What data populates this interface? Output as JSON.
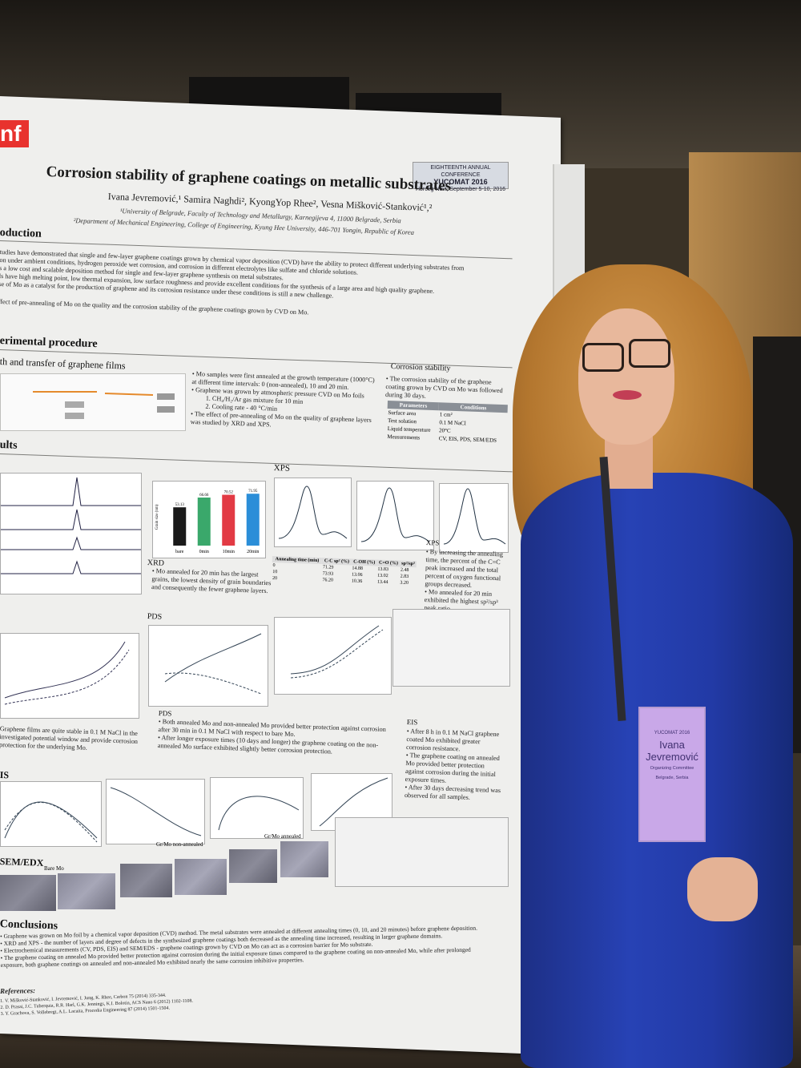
{
  "poster": {
    "title": "Corrosion stability of graphene coatings on metallic substrates",
    "authors": "Ivana Jevremović,¹ Samira Naghdi², KyongYop Rhee², Vesna Mišković-Stanković¹,²",
    "affiliation_1": "¹University of Belgrade, Faculty of Technology and Metallurgy, Karnegijeva 4, 11000 Belgrade, Serbia",
    "affiliation_2": "²Department of Mechanical Engineering, College of Engineering, Kyung Hee University, 446-701 Yongin, Republic of Korea",
    "conference": {
      "line1": "EIGHTEENTH ANNUAL CONFERENCE",
      "line2": "YUCOMAT 2016",
      "line3": "Herceg Novi, September 5-10, 2016"
    },
    "logo_text": "nf",
    "sections": {
      "introduction": "oduction",
      "experimental": "erimental procedure",
      "growth": "th and transfer of graphene films",
      "corrosion_stability": "Corrosion stability",
      "results": "ults",
      "xps": "XPS",
      "xrd": "XRD",
      "pds": "PDS",
      "eis": "IS",
      "sem": "SEM/EDX",
      "conclusions": "Conclusions",
      "references": "References:"
    },
    "intro_text": [
      "tudies have demonstrated that single and few-layer graphene coatings grown by chemical vapor deposition (CVD) have the ability to protect different underlying substrates from",
      "on under ambient conditions, hydrogen peroxide wet corrosion, and corrosion in different electrolytes like sulfate and chloride solutions.",
      "s a low cost and scalable deposition method for single and few-layer graphene synthesis on metal substrates.",
      "ls have high melting point, low thermal expansion, low surface roughness and provide excellent conditions for the synthesis of a large area and high quality graphene.",
      "se of Mo as a catalyst for the production of graphene and its corrosion resistance under these conditions is still a new challenge.",
      "ffect of pre-annealing of Mo on the quality and the corrosion stability of the graphene coatings grown by CVD on Mo."
    ],
    "experimental_text": [
      "• Mo samples were first annealed at the growth temperature (1000°C)",
      "at different time intervals: 0 (non-annealed), 10 and 20 min.",
      "• Graphene was grown by atmospheric pressure CVD on Mo foils",
      "1. CH₄/H₂/Ar gas mixture for 10 min",
      "2. Cooling rate - 40 °C/min",
      "• The effect of pre-annealing of Mo on the quality of graphene layers",
      "was studied by XRD and XPS."
    ],
    "corrosion_text": "• The corrosion stability of the graphene coating grown by CVD on Mo was followed during 30 days.",
    "corrosion_table": {
      "headers": [
        "Parameters",
        "Conditions"
      ],
      "rows": [
        [
          "Surface area",
          "1 cm²"
        ],
        [
          "Test solution",
          "0.1 M NaCl"
        ],
        [
          "Liquid temperature",
          "20°C"
        ],
        [
          "Measurements",
          "CV, EIS, PDS, SEM/EDS"
        ]
      ]
    },
    "grain_chart": {
      "ylabel": "Grain size (nm)",
      "categories": [
        "bare",
        "0min",
        "10min",
        "20min"
      ],
      "values": [
        53.13,
        66.66,
        70.52,
        71.95
      ],
      "colors": [
        "#1a1a1a",
        "#3aa86b",
        "#e23a44",
        "#2b8ed8"
      ]
    },
    "xrd_text": "• Mo annealed for 20 min has the largest grains, the lowest density of grain boundaries and consequently the fewer graphene layers.",
    "xps_text": [
      "• By increasing the annealing time, the percent of the C=C peak increased and the total percent of oxygen functional groups decreased.",
      "• Mo annealed for 20 min exhibited the highest sp²/sp³ peak ratio."
    ],
    "xps_table": {
      "headers": [
        "Annealing time (min)",
        "C-C sp² (%)",
        "C-OH (%)",
        "C=O (%)",
        "sp²/sp³"
      ],
      "rows": [
        [
          "0",
          "71.29",
          "14.88",
          "13.83",
          "2.48"
        ],
        [
          "10",
          "73.93",
          "13.06",
          "13.02",
          "2.83"
        ],
        [
          "20",
          "76.20",
          "10.36",
          "13.44",
          "3.20"
        ]
      ]
    },
    "cv_text": "Graphene films are quite stable in 0.1 M NaCl in the investigated potential window and provide corrosion protection for the underlying Mo.",
    "pds_text": [
      "• Both annealed Mo and non-annealed Mo provided better protection against corrosion after 30 min in 0.1 M NaCl with respect to bare Mo.",
      "• After longer exposure times (10 days and longer) the graphene coating on the non-annealed Mo surface exhibited slightly better corrosion protection."
    ],
    "eis_text": [
      "• After 8 h in 0.1 M NaCl graphene coated Mo exhibited greater corrosion resistance.",
      "• The graphene coating on annealed Mo provided better protection against corrosion during the initial exposure times.",
      "• After 30 days decreasing trend was observed for all samples."
    ],
    "sem_labels": [
      "Bare Mo",
      "Gr/Mo non-annealed",
      "Gr/Mo annealed"
    ],
    "conclusions_text": [
      "• Graphene was grown on Mo foil by a chemical vapor deposition (CVD) method. The metal substrates were annealed at different annealing times (0, 10, and 20 minutes) before graphene deposition.",
      "• XRD and XPS - the number of layers and degree of defects in the synthesized graphene coatings both decreased as the annealing time increased, resulting in larger graphene domains.",
      "• Electrochemical measurements (CV, PDS, EIS) and SEM/EDS - graphene coatings grown by CVD on Mo can act as a corrosion barrier for Mo substrate.",
      "• The graphene coating on annealed Mo provided better protection against corrosion during the initial exposure times compared to the graphene coating on non-annealed Mo, while after prolonged exposure, both graphene coatings on annealed and non-annealed Mo exhibited nearly the same corrosion inhibitive properties."
    ],
    "references_text": [
      "1. V. Mišković-Stanković, I. Jevremović, I. Jung, K. Rhee, Carbon 75 (2014) 335-344.",
      "2. D. Prasai, J.C. Tuberquia, R.R. Harl, G.K. Jennings, K.I. Bolotin, ACS Nano 6 (2012) 1102-1108.",
      "3. Y. Grachova, S. Vollebregt, A.L. Lacaita, Procedia Engineering 87 (2014) 1501-1504."
    ]
  },
  "badge": {
    "event": "YUCOMAT 2016",
    "name": "Ivana Jevremović",
    "role": "Organizing Committee",
    "place": "Belgrade, Serbia"
  },
  "colors": {
    "dress": "#2742b5",
    "hair": "#c0843a",
    "badge": "#c9a8e8",
    "logo": "#e8322e"
  }
}
